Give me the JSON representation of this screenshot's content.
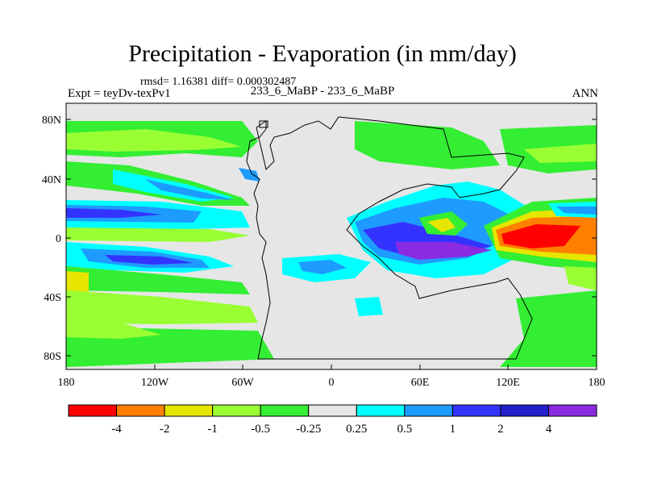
{
  "map": {
    "title": "Precipitation - Evaporation (in mm/day)",
    "stats": "rmsd= 1.16381 diff= 0.000302487",
    "experiment": "Expt = teyDv-texPv1",
    "case": "233_6_MaBP - 233_6_MaBP",
    "season": "ANN",
    "lat_ticks": [
      "80N",
      "40N",
      "0",
      "40S",
      "80S"
    ],
    "lon_ticks": [
      "180",
      "120W",
      "60W",
      "0",
      "60E",
      "120E",
      "180"
    ]
  },
  "colorbar": {
    "colors": [
      "#ff0000",
      "#ff8000",
      "#e6e600",
      "#99ff33",
      "#33ee33",
      "#e6e6e6",
      "#00ffff",
      "#1e9bff",
      "#3333ff",
      "#2020cc",
      "#8a2be2"
    ],
    "labels": [
      "-4",
      "-2",
      "-1",
      "-0.5",
      "-0.25",
      "0.25",
      "0.5",
      "1",
      "2",
      "4"
    ]
  }
}
